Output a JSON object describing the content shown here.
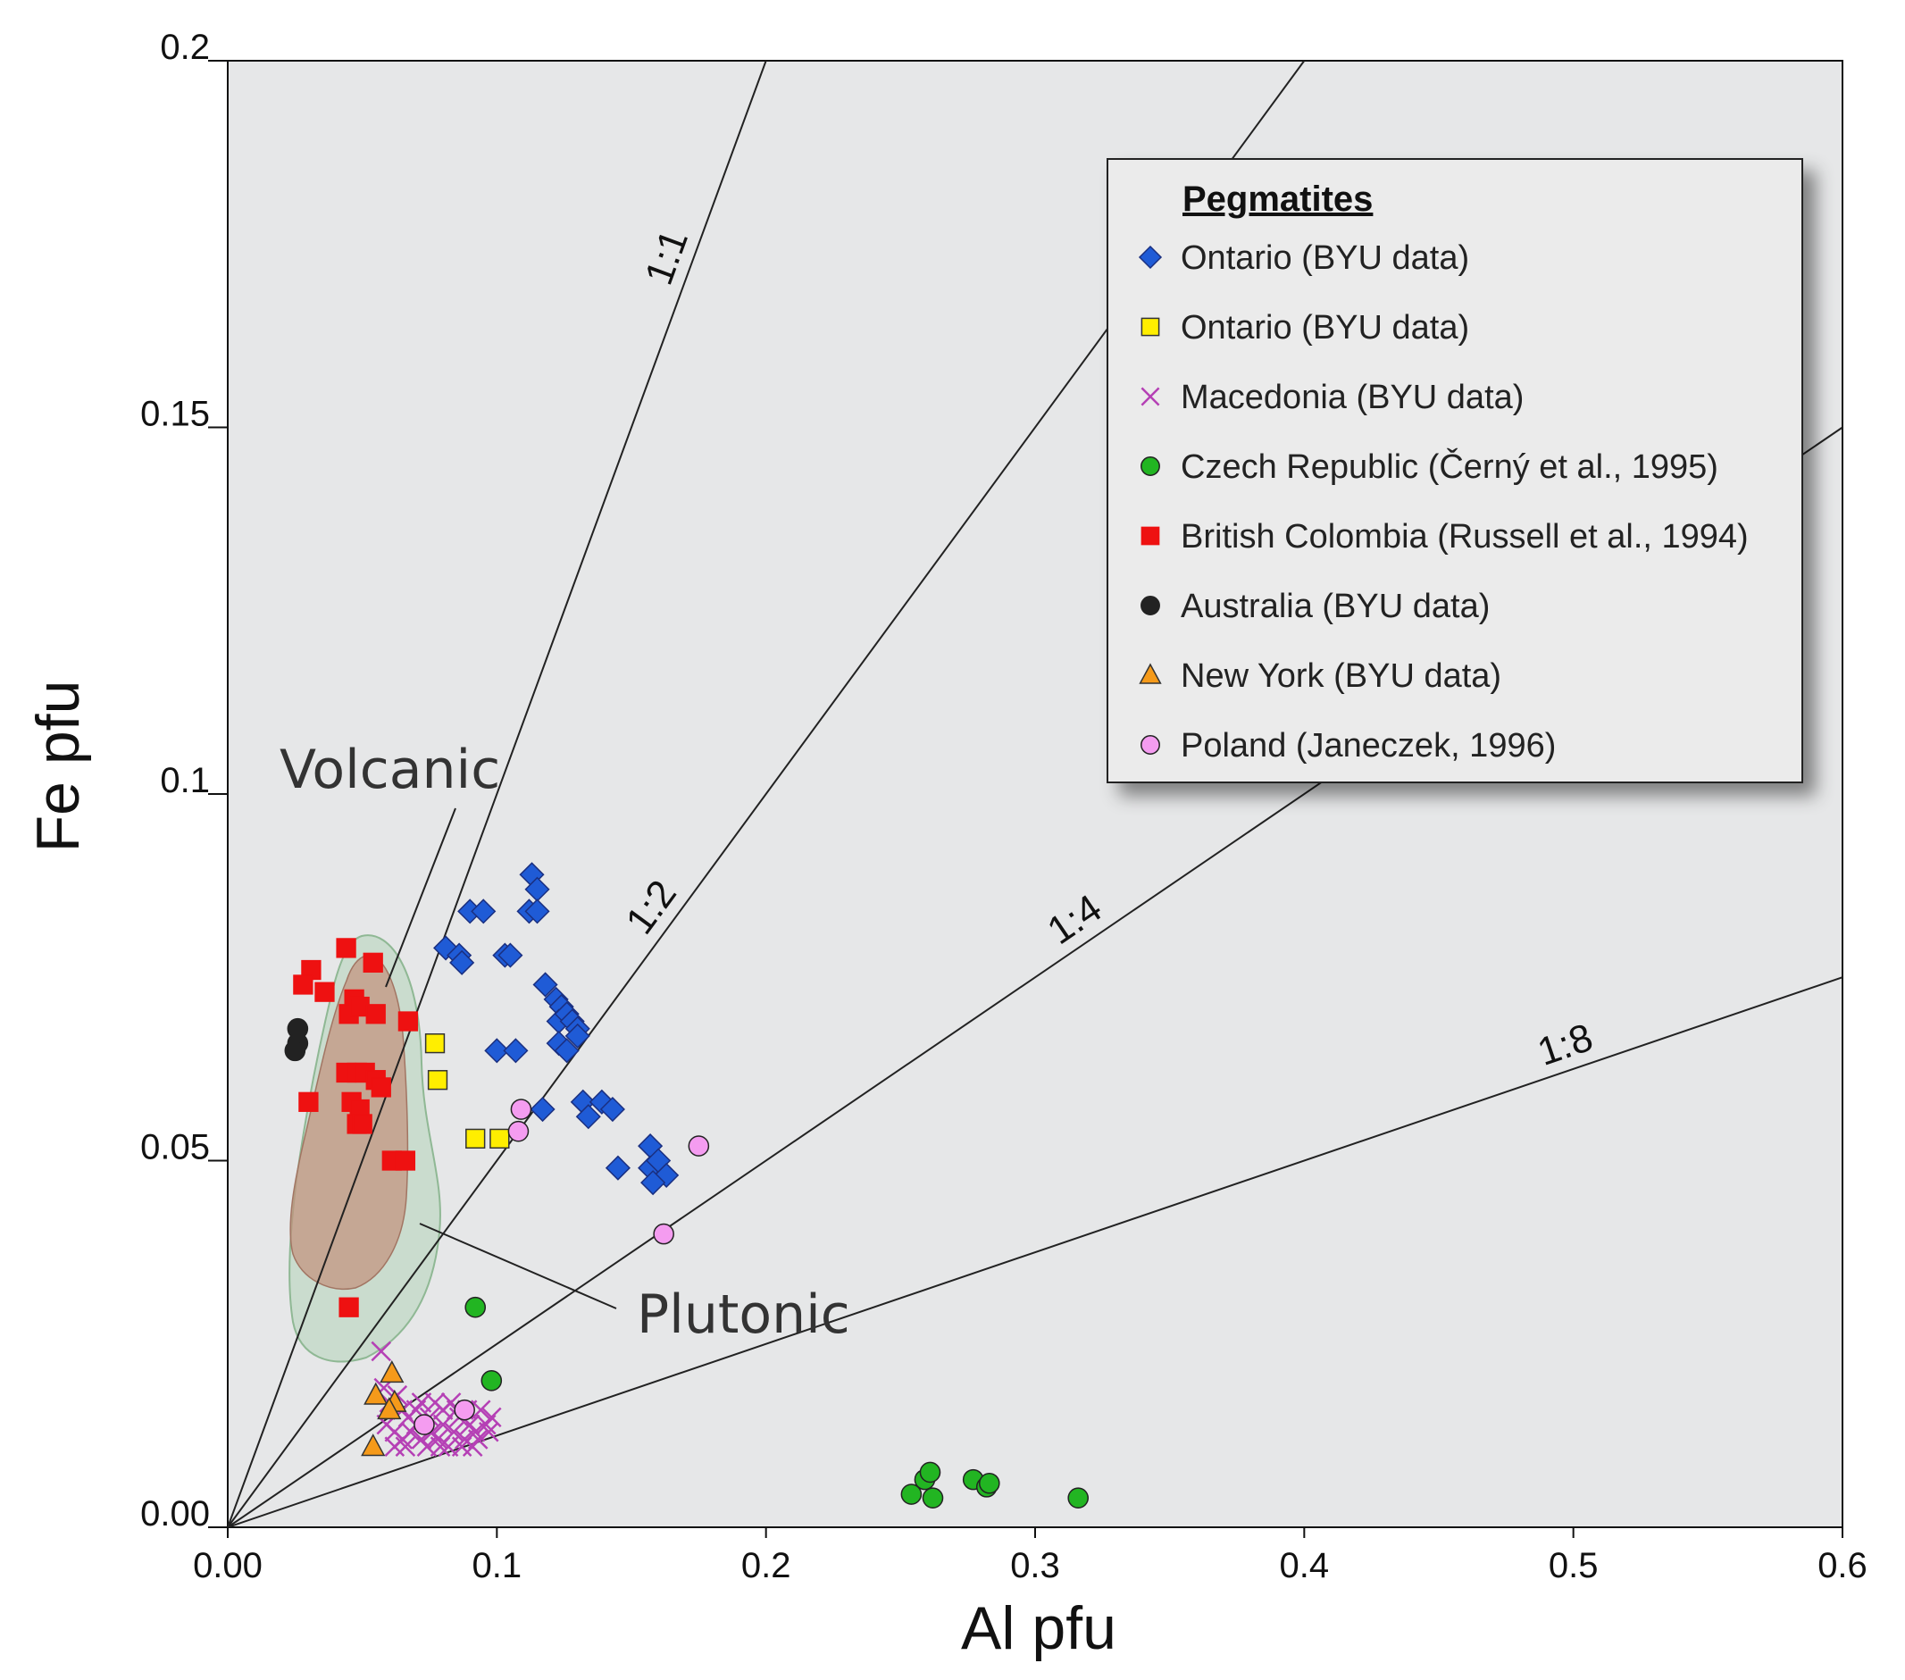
{
  "chart_data": {
    "type": "scatter",
    "xlabel": "Al pfu",
    "ylabel": "Fe  pfu",
    "xlim": [
      0,
      0.6
    ],
    "ylim": [
      0,
      0.2
    ],
    "x_ticks": [
      "0.00",
      "0.1",
      "0.2",
      "0.3",
      "0.4",
      "0.5",
      "0.6"
    ],
    "x_tick_values": [
      0,
      0.1,
      0.2,
      0.3,
      0.4,
      0.5,
      0.6
    ],
    "y_ticks": [
      "0.00",
      "0.05",
      "0.1",
      "0.15",
      "0.2"
    ],
    "y_tick_values": [
      0,
      0.05,
      0.1,
      0.15,
      0.2
    ],
    "ratio_lines": [
      {
        "label": "1:1",
        "slope": 1
      },
      {
        "label": "1:2",
        "slope": 0.5
      },
      {
        "label": "1:4",
        "slope": 0.25
      },
      {
        "label": "1:8",
        "slope": 0.125
      }
    ],
    "field_labels": {
      "volcanic": "Volcanic",
      "plutonic": "Plutonic"
    },
    "legend_title": "Pegmatites",
    "colors": {
      "background": "#e6e7e8",
      "ontario_blue": "#1f5bd6",
      "ontario_yellow": "#ffee00",
      "macedonia": "#b540b5",
      "czech": "#22b522",
      "british_columbia": "#ee1111",
      "australia": "#222222",
      "new_york": "#f59a1a",
      "poland": "#f49cf0",
      "plutonic_field": "#b8d6bc",
      "volcanic_field": "#c3907c"
    },
    "series": [
      {
        "name": "Ontario (BYU data)",
        "marker": "diamond",
        "color": "#1f5bd6",
        "points": [
          [
            0.113,
            0.089
          ],
          [
            0.115,
            0.087
          ],
          [
            0.112,
            0.084
          ],
          [
            0.115,
            0.084
          ],
          [
            0.09,
            0.084
          ],
          [
            0.095,
            0.084
          ],
          [
            0.081,
            0.079
          ],
          [
            0.086,
            0.078
          ],
          [
            0.087,
            0.077
          ],
          [
            0.103,
            0.078
          ],
          [
            0.105,
            0.078
          ],
          [
            0.118,
            0.074
          ],
          [
            0.122,
            0.072
          ],
          [
            0.124,
            0.071
          ],
          [
            0.123,
            0.069
          ],
          [
            0.126,
            0.07
          ],
          [
            0.128,
            0.069
          ],
          [
            0.13,
            0.068
          ],
          [
            0.123,
            0.066
          ],
          [
            0.126,
            0.065
          ],
          [
            0.13,
            0.067
          ],
          [
            0.1,
            0.065
          ],
          [
            0.107,
            0.065
          ],
          [
            0.117,
            0.057
          ],
          [
            0.132,
            0.058
          ],
          [
            0.134,
            0.056
          ],
          [
            0.139,
            0.058
          ],
          [
            0.143,
            0.057
          ],
          [
            0.145,
            0.049
          ],
          [
            0.157,
            0.052
          ],
          [
            0.157,
            0.049
          ],
          [
            0.16,
            0.05
          ],
          [
            0.163,
            0.048
          ],
          [
            0.158,
            0.047
          ]
        ]
      },
      {
        "name": "Ontario (BYU data)",
        "marker": "square",
        "color": "#ffee00",
        "points": [
          [
            0.077,
            0.066
          ],
          [
            0.078,
            0.061
          ],
          [
            0.092,
            0.053
          ],
          [
            0.101,
            0.053
          ]
        ]
      },
      {
        "name": "Macedonia (BYU data)",
        "marker": "x",
        "color": "#b540b5",
        "points": [
          [
            0.057,
            0.024
          ],
          [
            0.058,
            0.019
          ],
          [
            0.06,
            0.017
          ],
          [
            0.063,
            0.018
          ],
          [
            0.065,
            0.016
          ],
          [
            0.067,
            0.015
          ],
          [
            0.059,
            0.014
          ],
          [
            0.062,
            0.013
          ],
          [
            0.065,
            0.012
          ],
          [
            0.068,
            0.013
          ],
          [
            0.07,
            0.014
          ],
          [
            0.072,
            0.012
          ],
          [
            0.074,
            0.011
          ],
          [
            0.076,
            0.013
          ],
          [
            0.078,
            0.012
          ],
          [
            0.08,
            0.014
          ],
          [
            0.082,
            0.011
          ],
          [
            0.084,
            0.013
          ],
          [
            0.086,
            0.015
          ],
          [
            0.088,
            0.012
          ],
          [
            0.09,
            0.014
          ],
          [
            0.092,
            0.013
          ],
          [
            0.094,
            0.016
          ],
          [
            0.096,
            0.014
          ],
          [
            0.098,
            0.015
          ],
          [
            0.085,
            0.016
          ],
          [
            0.08,
            0.016
          ],
          [
            0.075,
            0.015
          ],
          [
            0.07,
            0.016
          ],
          [
            0.062,
            0.011
          ],
          [
            0.066,
            0.011
          ],
          [
            0.072,
            0.017
          ],
          [
            0.077,
            0.017
          ],
          [
            0.083,
            0.017
          ],
          [
            0.089,
            0.016
          ],
          [
            0.093,
            0.012
          ],
          [
            0.097,
            0.013
          ],
          [
            0.091,
            0.011
          ],
          [
            0.087,
            0.011
          ],
          [
            0.079,
            0.011
          ]
        ]
      },
      {
        "name": "Czech Republic (Černý et al., 1995)",
        "marker": "circle",
        "color": "#22b522",
        "points": [
          [
            0.092,
            0.03
          ],
          [
            0.098,
            0.02
          ],
          [
            0.254,
            0.0045
          ],
          [
            0.259,
            0.0065
          ],
          [
            0.261,
            0.0075
          ],
          [
            0.262,
            0.004
          ],
          [
            0.277,
            0.0065
          ],
          [
            0.282,
            0.0055
          ],
          [
            0.283,
            0.006
          ],
          [
            0.316,
            0.004
          ]
        ]
      },
      {
        "name": "British Colombia (Russell et al., 1994)",
        "marker": "square",
        "color": "#ee1111",
        "points": [
          [
            0.044,
            0.079
          ],
          [
            0.054,
            0.077
          ],
          [
            0.031,
            0.076
          ],
          [
            0.028,
            0.074
          ],
          [
            0.036,
            0.073
          ],
          [
            0.047,
            0.072
          ],
          [
            0.045,
            0.07
          ],
          [
            0.049,
            0.071
          ],
          [
            0.055,
            0.07
          ],
          [
            0.067,
            0.069
          ],
          [
            0.044,
            0.062
          ],
          [
            0.048,
            0.062
          ],
          [
            0.051,
            0.062
          ],
          [
            0.055,
            0.061
          ],
          [
            0.057,
            0.06
          ],
          [
            0.03,
            0.058
          ],
          [
            0.046,
            0.058
          ],
          [
            0.049,
            0.057
          ],
          [
            0.048,
            0.055
          ],
          [
            0.05,
            0.055
          ],
          [
            0.061,
            0.05
          ],
          [
            0.066,
            0.05
          ],
          [
            0.045,
            0.03
          ]
        ]
      },
      {
        "name": "Australia (BYU data)",
        "marker": "circle",
        "color": "#222222",
        "points": [
          [
            0.026,
            0.068
          ],
          [
            0.026,
            0.066
          ],
          [
            0.025,
            0.065
          ]
        ]
      },
      {
        "name": "New York (BYU data)",
        "marker": "triangle",
        "color": "#f59a1a",
        "points": [
          [
            0.061,
            0.021
          ],
          [
            0.055,
            0.018
          ],
          [
            0.062,
            0.017
          ],
          [
            0.06,
            0.016
          ],
          [
            0.054,
            0.011
          ]
        ]
      },
      {
        "name": "Poland (Janeczek, 1996)",
        "marker": "circle",
        "color": "#f49cf0",
        "points": [
          [
            0.109,
            0.057
          ],
          [
            0.108,
            0.054
          ],
          [
            0.175,
            0.052
          ],
          [
            0.162,
            0.04
          ],
          [
            0.073,
            0.014
          ],
          [
            0.088,
            0.016
          ]
        ]
      }
    ]
  }
}
